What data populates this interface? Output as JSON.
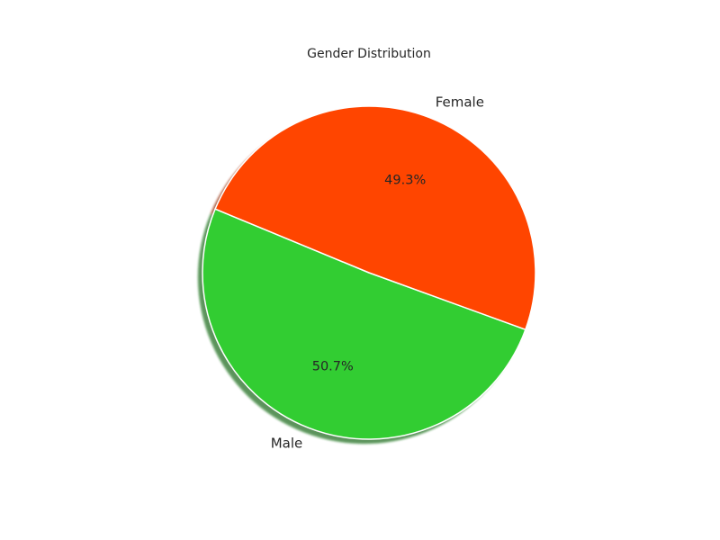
{
  "chart_data": {
    "type": "pie",
    "title": "Gender Distribution",
    "categories": [
      "Male",
      "Female"
    ],
    "values": [
      50.7,
      49.3
    ],
    "percent_labels": [
      "50.7%",
      "49.3%"
    ],
    "colors": [
      "#32CD32",
      "#FF4500"
    ],
    "shadow": true,
    "legend": "none"
  }
}
